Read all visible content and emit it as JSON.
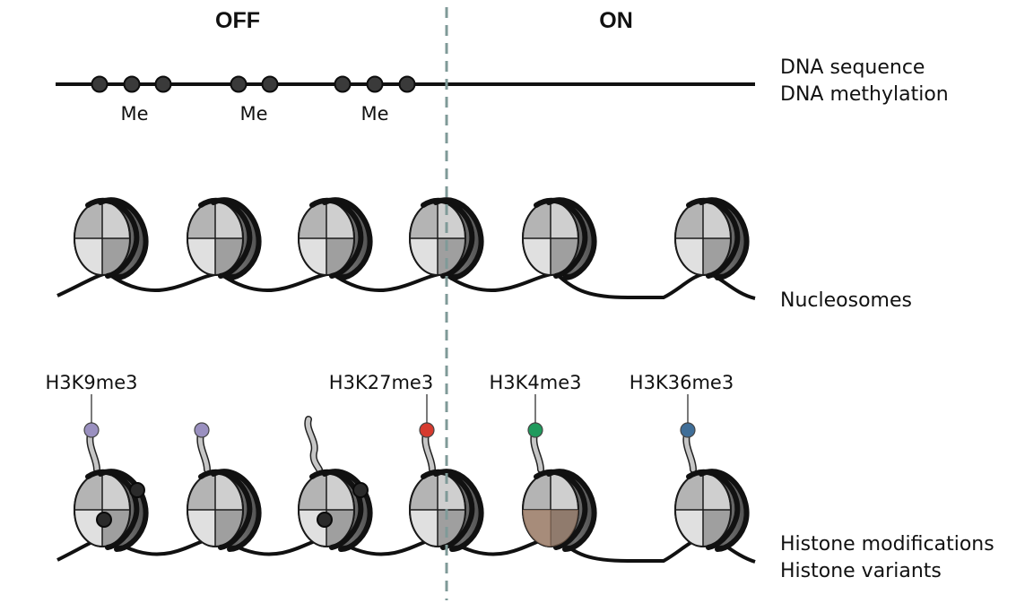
{
  "headers": {
    "off": "OFF",
    "on": "ON"
  },
  "row_labels": {
    "dna_sequence": "DNA sequence",
    "dna_methylation": "DNA methylation",
    "nucleosomes": "Nucleosomes",
    "histone_modifications": "Histone modifications",
    "histone_variants": "Histone variants"
  },
  "methyl_label": "Me",
  "histone_marks": [
    "H3K9me3",
    "H3K27me3",
    "H3K4me3",
    "H3K36me3"
  ],
  "colors": {
    "h3k9me3": "#9a90c0",
    "h3k27me3": "#d63a2e",
    "h3k4me3": "#1f9a5c",
    "h3k36me3": "#3f6e98",
    "histone_variant": "#9c7d67",
    "divider": "#7f9a98"
  }
}
